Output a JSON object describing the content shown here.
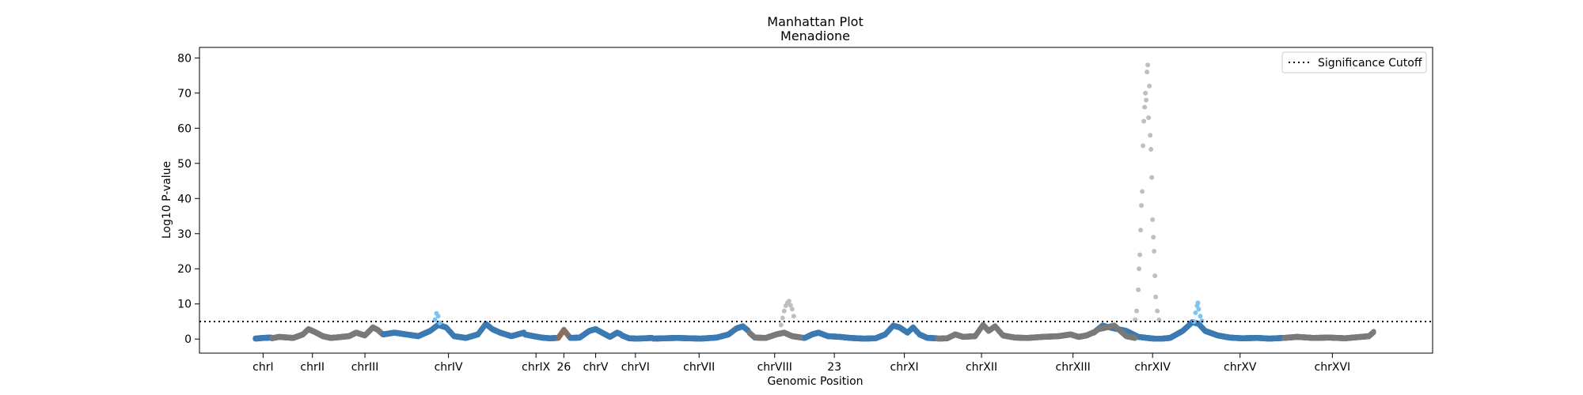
{
  "chart_data": {
    "type": "scatter",
    "title": "Manhattan Plot",
    "subtitle": "Menadione",
    "xlabel": "Genomic Position",
    "ylabel": "Log10 P-value",
    "xlim": [
      0,
      1550
    ],
    "ylim": [
      -4,
      83
    ],
    "yticks": [
      0,
      10,
      20,
      30,
      40,
      50,
      60,
      70,
      80
    ],
    "grid": false,
    "legend": {
      "placement": "top-right",
      "entries": [
        "Significance Cutoff"
      ]
    },
    "cutoff": {
      "name": "Significance Cutoff",
      "y": 5,
      "style": "dotted",
      "color": "#000000"
    },
    "colors": {
      "blue": "#3d7ab3",
      "grey": "#7a7a7a",
      "light_blue": "#7ec4ef",
      "light_grey": "#bfbfbf",
      "brown": "#8a6f5f"
    },
    "xticks": [
      {
        "label": "chrI",
        "x": 80
      },
      {
        "label": "chrII",
        "x": 142
      },
      {
        "label": "chrIII",
        "x": 208
      },
      {
        "label": "chrIV",
        "x": 313
      },
      {
        "label": "chrIX",
        "x": 423
      },
      {
        "label": "26",
        "x": 458
      },
      {
        "label": "chrV",
        "x": 498
      },
      {
        "label": "chrVI",
        "x": 548
      },
      {
        "label": "chrVII",
        "x": 628
      },
      {
        "label": "chrVIII",
        "x": 723
      },
      {
        "label": "23",
        "x": 798
      },
      {
        "label": "chrXI",
        "x": 886
      },
      {
        "label": "chrXII",
        "x": 983
      },
      {
        "label": "chrXIII",
        "x": 1098
      },
      {
        "label": "chrXIV",
        "x": 1198
      },
      {
        "label": "chrXV",
        "x": 1308
      },
      {
        "label": "chrXVI",
        "x": 1424
      }
    ],
    "segments": [
      {
        "chrom": "chrI",
        "x_start": 70,
        "x_end": 90,
        "color": "blue",
        "peaks": [
          [
            70,
            0.3
          ],
          [
            80,
            0.5
          ],
          [
            90,
            0.6
          ]
        ]
      },
      {
        "chrom": "chrII",
        "x_start": 91,
        "x_end": 187,
        "color": "grey",
        "peaks": [
          [
            91,
            0.4
          ],
          [
            100,
            0.8
          ],
          [
            118,
            0.5
          ],
          [
            130,
            1.5
          ],
          [
            137,
            3.0
          ],
          [
            145,
            2.2
          ],
          [
            155,
            1.0
          ],
          [
            165,
            0.5
          ],
          [
            175,
            0.7
          ],
          [
            187,
            1.0
          ]
        ]
      },
      {
        "chrom": "chrIII",
        "x_start": 188,
        "x_end": 230,
        "color": "grey",
        "peaks": [
          [
            188,
            1.0
          ],
          [
            197,
            2.0
          ],
          [
            208,
            1.2
          ],
          [
            218,
            3.5
          ],
          [
            224,
            2.8
          ],
          [
            230,
            1.6
          ]
        ]
      },
      {
        "chrom": "chrIV",
        "x_start": 231,
        "x_end": 408,
        "color": "blue",
        "peaks": [
          [
            231,
            1.5
          ],
          [
            245,
            2.0
          ],
          [
            260,
            1.5
          ],
          [
            275,
            1.0
          ],
          [
            290,
            2.5
          ],
          [
            300,
            4.2
          ],
          [
            310,
            3.5
          ],
          [
            320,
            1.0
          ],
          [
            335,
            0.5
          ],
          [
            350,
            1.5
          ],
          [
            360,
            4.5
          ],
          [
            368,
            3.0
          ],
          [
            378,
            2.0
          ],
          [
            392,
            1.0
          ],
          [
            408,
            2.0
          ]
        ]
      },
      {
        "chrom": "chrIX",
        "x_start": 409,
        "x_end": 450,
        "color": "blue",
        "peaks": [
          [
            409,
            1.5
          ],
          [
            420,
            1.0
          ],
          [
            430,
            0.6
          ],
          [
            440,
            0.4
          ],
          [
            450,
            0.5
          ]
        ]
      },
      {
        "chrom": "26",
        "x_start": 451,
        "x_end": 465,
        "color": "brown",
        "peaks": [
          [
            451,
            0.5
          ],
          [
            458,
            2.8
          ],
          [
            465,
            0.8
          ]
        ]
      },
      {
        "chrom": "chrV",
        "x_start": 466,
        "x_end": 530,
        "color": "blue",
        "peaks": [
          [
            466,
            0.5
          ],
          [
            478,
            0.6
          ],
          [
            490,
            2.5
          ],
          [
            498,
            3.0
          ],
          [
            506,
            2.0
          ],
          [
            516,
            0.8
          ],
          [
            525,
            2.0
          ],
          [
            530,
            1.5
          ]
        ]
      },
      {
        "chrom": "chrVI",
        "x_start": 531,
        "x_end": 569,
        "color": "blue",
        "peaks": [
          [
            531,
            1.2
          ],
          [
            540,
            0.4
          ],
          [
            550,
            0.3
          ],
          [
            560,
            0.4
          ],
          [
            569,
            0.5
          ]
        ]
      },
      {
        "chrom": "chrVII",
        "x_start": 570,
        "x_end": 690,
        "color": "blue",
        "peaks": [
          [
            570,
            0.3
          ],
          [
            600,
            0.5
          ],
          [
            630,
            0.3
          ],
          [
            650,
            0.6
          ],
          [
            665,
            1.5
          ],
          [
            675,
            3.2
          ],
          [
            683,
            3.8
          ],
          [
            690,
            2.5
          ]
        ]
      },
      {
        "chrom": "chrXV",
        "x_start": 1124,
        "x_end": 1362,
        "color": "blue",
        "peaks": [
          [
            1124,
            2.0
          ],
          [
            1135,
            4.0
          ],
          [
            1150,
            3.2
          ],
          [
            1165,
            2.5
          ],
          [
            1180,
            0.8
          ],
          [
            1195,
            0.4
          ],
          [
            1205,
            0.2
          ],
          [
            1220,
            0.5
          ],
          [
            1236,
            2.5
          ],
          [
            1248,
            5.0
          ],
          [
            1256,
            4.5
          ],
          [
            1264,
            2.5
          ],
          [
            1280,
            1.2
          ],
          [
            1295,
            0.6
          ],
          [
            1310,
            0.4
          ],
          [
            1330,
            0.5
          ],
          [
            1345,
            0.3
          ],
          [
            1362,
            0.5
          ]
        ]
      },
      {
        "chrom": "chrVIII",
        "x_start": 691,
        "x_end": 760,
        "color": "grey",
        "peaks": [
          [
            691,
            2.0
          ],
          [
            698,
            0.6
          ],
          [
            712,
            0.5
          ],
          [
            725,
            1.5
          ],
          [
            735,
            2.0
          ],
          [
            745,
            1.0
          ],
          [
            760,
            0.5
          ]
        ]
      },
      {
        "chrom": "23",
        "x_start": 761,
        "x_end": 850,
        "color": "blue",
        "peaks": [
          [
            761,
            0.5
          ],
          [
            770,
            1.5
          ],
          [
            778,
            2.0
          ],
          [
            790,
            1.0
          ],
          [
            805,
            0.8
          ],
          [
            818,
            0.5
          ],
          [
            835,
            0.3
          ],
          [
            850,
            0.4
          ]
        ]
      },
      {
        "chrom": "chrXI",
        "x_start": 851,
        "x_end": 927,
        "color": "blue",
        "peaks": [
          [
            851,
            0.5
          ],
          [
            862,
            1.5
          ],
          [
            872,
            4.0
          ],
          [
            880,
            3.5
          ],
          [
            890,
            2.0
          ],
          [
            897,
            3.5
          ],
          [
            905,
            1.5
          ],
          [
            915,
            0.5
          ],
          [
            927,
            0.4
          ]
        ]
      },
      {
        "chrom": "chrXII",
        "x_start": 928,
        "x_end": 1040,
        "color": "grey",
        "peaks": [
          [
            928,
            0.3
          ],
          [
            940,
            0.4
          ],
          [
            950,
            1.5
          ],
          [
            960,
            0.8
          ],
          [
            975,
            1.0
          ],
          [
            985,
            4.2
          ],
          [
            992,
            2.5
          ],
          [
            1000,
            3.8
          ],
          [
            1010,
            1.2
          ],
          [
            1025,
            0.6
          ],
          [
            1040,
            0.5
          ]
        ]
      },
      {
        "chrom": "chrXIII",
        "x_start": 1041,
        "x_end": 1123,
        "color": "grey",
        "peaks": [
          [
            1041,
            0.5
          ],
          [
            1060,
            0.8
          ],
          [
            1080,
            1.0
          ],
          [
            1095,
            1.5
          ],
          [
            1105,
            0.8
          ],
          [
            1115,
            1.2
          ],
          [
            1123,
            2.0
          ]
        ]
      },
      {
        "chrom": "chrXIV",
        "x_start": 1124,
        "x_end": 1176,
        "color": "grey",
        "peaks": [
          [
            1124,
            2.0
          ],
          [
            1130,
            3.0
          ],
          [
            1140,
            3.5
          ],
          [
            1150,
            4.0
          ],
          [
            1155,
            3.0
          ],
          [
            1165,
            1.0
          ],
          [
            1176,
            0.5
          ]
        ]
      },
      {
        "chrom": "chrXVI",
        "x_start": 1363,
        "x_end": 1476,
        "color": "grey",
        "peaks": [
          [
            1363,
            0.5
          ],
          [
            1380,
            0.8
          ],
          [
            1400,
            0.5
          ],
          [
            1420,
            0.6
          ],
          [
            1440,
            0.4
          ],
          [
            1460,
            0.8
          ],
          [
            1470,
            1.0
          ],
          [
            1476,
            2.2
          ]
        ]
      }
    ],
    "highlights": [
      {
        "label": "chrIV peak",
        "color": "light_blue",
        "points": [
          [
            296,
            5.5
          ],
          [
            298,
            7.3
          ],
          [
            300,
            6.5
          ],
          [
            302,
            4.6
          ]
        ]
      },
      {
        "label": "chrVIII peak",
        "color": "light_grey",
        "points": [
          [
            731,
            4
          ],
          [
            733,
            6
          ],
          [
            735,
            8
          ],
          [
            737,
            9.5
          ],
          [
            739,
            10.3
          ],
          [
            741,
            10.8
          ],
          [
            743,
            9.6
          ],
          [
            745,
            8.5
          ],
          [
            747,
            6.5
          ]
        ]
      },
      {
        "label": "chrXIV peak",
        "color": "light_grey",
        "points": [
          [
            1176,
            5.5
          ],
          [
            1178,
            8
          ],
          [
            1180,
            14
          ],
          [
            1181,
            20
          ],
          [
            1182,
            24
          ],
          [
            1183,
            31
          ],
          [
            1184,
            38
          ],
          [
            1185,
            42
          ],
          [
            1186,
            55
          ],
          [
            1187,
            62
          ],
          [
            1188,
            66
          ],
          [
            1189,
            70
          ],
          [
            1190,
            68
          ],
          [
            1191,
            76
          ],
          [
            1192,
            78
          ],
          [
            1193,
            63
          ],
          [
            1194,
            72
          ],
          [
            1195,
            58
          ],
          [
            1196,
            54
          ],
          [
            1197,
            46
          ],
          [
            1198,
            34
          ],
          [
            1199,
            29
          ],
          [
            1200,
            25
          ],
          [
            1201,
            18
          ],
          [
            1202,
            12
          ],
          [
            1204,
            8
          ],
          [
            1206,
            5.5
          ]
        ]
      },
      {
        "label": "chrXV peak",
        "color": "light_blue",
        "points": [
          [
            1250,
            5.0
          ],
          [
            1252,
            7.5
          ],
          [
            1254,
            9.5
          ],
          [
            1255,
            10.3
          ],
          [
            1256,
            8.5
          ],
          [
            1258,
            6.5
          ],
          [
            1260,
            5.2
          ]
        ]
      }
    ]
  }
}
